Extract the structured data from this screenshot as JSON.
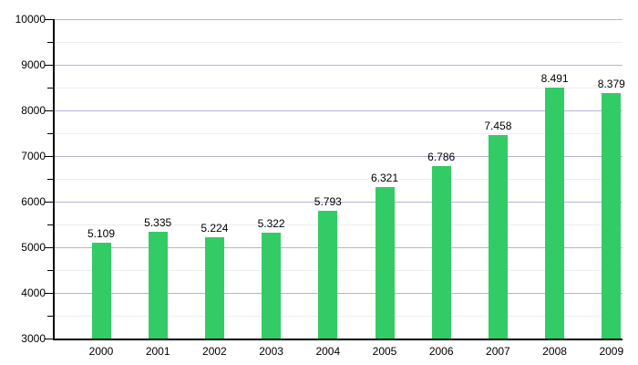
{
  "chart_data": {
    "type": "bar",
    "title": "",
    "xlabel": "",
    "ylabel": "",
    "categories": [
      "2000",
      "2001",
      "2002",
      "2003",
      "2004",
      "2005",
      "2006",
      "2007",
      "2008",
      "2009"
    ],
    "values": [
      5109,
      5335,
      5224,
      5322,
      5793,
      6321,
      6786,
      7458,
      8491,
      8379
    ],
    "value_labels": [
      "5.109",
      "5.335",
      "5.224",
      "5.322",
      "5.793",
      "6.321",
      "6.786",
      "7.458",
      "8.491",
      "8.379"
    ],
    "y_axis": {
      "min": 3000,
      "max": 10000,
      "major_step": 1000,
      "minor_step": 500,
      "tick_labels": [
        "3000",
        "4000",
        "5000",
        "6000",
        "7000",
        "8000",
        "9000",
        "10000"
      ]
    },
    "grid": {
      "major": true,
      "minor": true
    },
    "legend": "none",
    "colors": {
      "bar": "#33cb65",
      "grid_major": "#b3b3d6",
      "grid_minor": "#ededf2",
      "axis": "#000000",
      "text": "#000000",
      "background": "#ffffff"
    }
  }
}
